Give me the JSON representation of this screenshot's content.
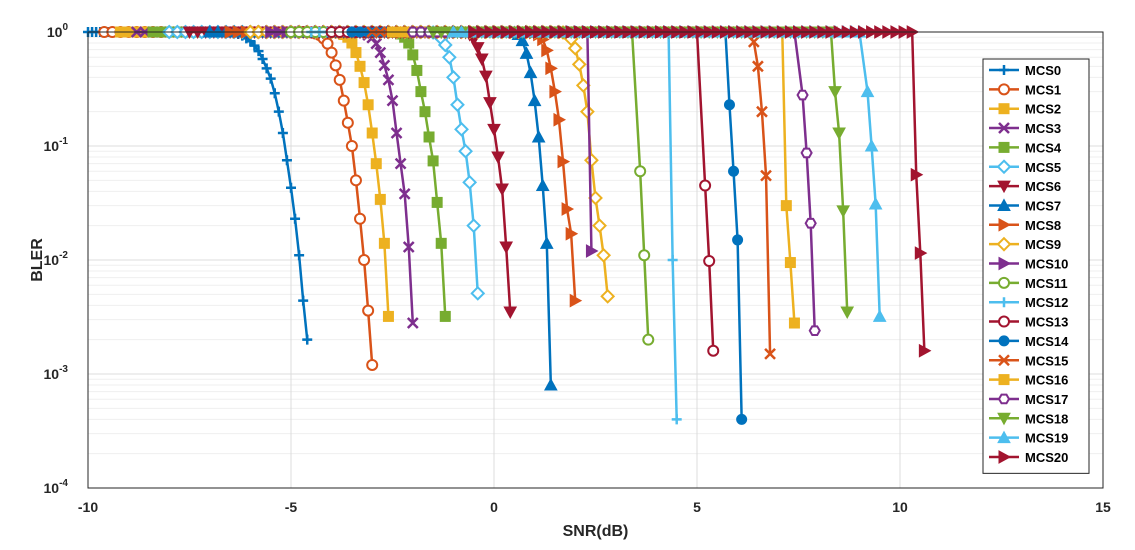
{
  "chart_data": {
    "type": "line",
    "xlabel": "SNR(dB)",
    "ylabel": "BLER",
    "xlim": [
      -10,
      15
    ],
    "ylim": [
      0.0001,
      1
    ],
    "yscale": "log",
    "grid": true,
    "legend_position": "right",
    "x_ticks": [
      "-10",
      "-5",
      "0",
      "5",
      "10",
      "15"
    ],
    "y_ticks": [
      {
        "base": "10",
        "exp": "0",
        "value": 1
      },
      {
        "base": "10",
        "exp": "-1",
        "value": 0.1
      },
      {
        "base": "10",
        "exp": "-2",
        "value": 0.01
      },
      {
        "base": "10",
        "exp": "-3",
        "value": 0.001
      },
      {
        "base": "10",
        "exp": "-4",
        "value": 0.0001
      }
    ],
    "series": [
      {
        "name": "MCS0",
        "color": "#0072BD",
        "marker": "plus",
        "x_start": -10.0,
        "x_end": -4.6,
        "values": [
          1,
          1,
          1,
          1,
          1,
          1,
          1,
          1,
          1,
          1,
          1,
          1,
          1,
          1,
          1,
          1,
          1,
          1,
          1,
          1,
          1,
          1,
          1,
          1,
          1,
          1,
          1,
          1,
          1,
          1,
          1,
          1,
          1,
          1,
          1,
          1,
          1,
          1,
          1,
          1,
          1,
          1,
          1,
          1,
          1,
          1,
          1,
          1,
          1,
          1,
          1,
          1,
          1,
          1,
          1,
          1,
          1,
          1,
          0.998,
          0.995,
          0.99,
          0.98,
          0.96,
          0.93,
          0.88,
          0.83,
          0.76,
          0.68,
          0.58,
          0.48,
          0.39,
          0.29,
          0.2,
          0.13,
          0.075,
          0.043,
          0.023,
          0.011,
          0.0044,
          0.002
        ],
        "step": 0.1,
        "shown": [
          -10.0,
          -4.6
        ]
      },
      {
        "name": "MCS1",
        "color": "#D95319",
        "marker": "circle",
        "x_start": -9.6,
        "x_end": -3.0,
        "values": [
          1,
          0.997,
          0.99,
          0.97,
          0.94,
          0.88,
          0.79,
          0.66,
          0.51,
          0.38,
          0.25,
          0.16,
          0.1,
          0.05,
          0.023,
          0.01,
          0.0036,
          0.0012
        ],
        "step": 0.1,
        "shown": [
          -4.7,
          -3.0
        ]
      },
      {
        "name": "MCS2",
        "color": "#EDB120",
        "marker": "square",
        "x_start": -9.2,
        "x_end": -2.6,
        "values": [
          1,
          0.995,
          0.98,
          0.95,
          0.9,
          0.8,
          0.66,
          0.5,
          0.36,
          0.23,
          0.13,
          0.07,
          0.034,
          0.014,
          0.0032
        ],
        "step": 0.1,
        "shown": [
          -4.0,
          -2.6
        ]
      },
      {
        "name": "MCS3",
        "color": "#7E2F8E",
        "marker": "x",
        "x_start": -8.8,
        "x_end": -2.0,
        "values": [
          1,
          0.99,
          0.98,
          0.94,
          0.89,
          0.79,
          0.66,
          0.51,
          0.38,
          0.25,
          0.13,
          0.07,
          0.038,
          0.013,
          0.0028
        ],
        "step": 0.1,
        "shown": [
          -3.4,
          -2.0
        ]
      },
      {
        "name": "MCS4",
        "color": "#77AC30",
        "marker": "square",
        "x_start": -8.4,
        "x_end": -1.2,
        "values": [
          1,
          0.99,
          0.96,
          0.9,
          0.8,
          0.63,
          0.46,
          0.3,
          0.2,
          0.12,
          0.074,
          0.032,
          0.014,
          0.0032
        ],
        "step": 0.1,
        "shown": [
          -2.5,
          -1.2
        ]
      },
      {
        "name": "MCS5",
        "color": "#4DBEEE",
        "marker": "diamond",
        "x_start": -8.0,
        "x_end": -0.4,
        "values": [
          1,
          0.99,
          0.96,
          0.88,
          0.77,
          0.6,
          0.4,
          0.23,
          0.14,
          0.09,
          0.048,
          0.02,
          0.0051
        ],
        "step": 0.1,
        "shown": [
          -1.6,
          -0.4
        ]
      },
      {
        "name": "MCS6",
        "color": "#A2142F",
        "marker": "tri-down",
        "x_start": -7.5,
        "x_end": 0.4,
        "values": [
          1,
          0.99,
          0.95,
          0.86,
          0.73,
          0.58,
          0.41,
          0.24,
          0.14,
          0.08,
          0.042,
          0.013,
          0.0035
        ],
        "step": 0.1,
        "shown": [
          -0.8,
          0.4
        ]
      },
      {
        "name": "MCS7",
        "color": "#0072BD",
        "marker": "tri-up",
        "x_start": -7.0,
        "x_end": 1.4,
        "values": [
          1,
          0.99,
          0.95,
          0.84,
          0.65,
          0.44,
          0.25,
          0.12,
          0.045,
          0.014,
          0.0008
        ],
        "step": 0.1,
        "shown": [
          0.4,
          1.4
        ]
      },
      {
        "name": "MCS8",
        "color": "#D95319",
        "marker": "tri-right",
        "x_start": -6.5,
        "x_end": 2.0,
        "values": [
          1,
          0.99,
          0.95,
          0.86,
          0.69,
          0.48,
          0.3,
          0.17,
          0.073,
          0.028,
          0.017,
          0.0044
        ],
        "step": 0.1,
        "shown": [
          0.9,
          2.0
        ]
      },
      {
        "name": "MCS9",
        "color": "#EDB120",
        "marker": "diamond",
        "x_start": -6.0,
        "x_end": 2.8,
        "values": [
          1,
          0.99,
          0.95,
          0.87,
          0.72,
          0.52,
          0.34,
          0.2,
          0.075,
          0.035,
          0.02,
          0.011,
          0.0048
        ],
        "step": 0.1,
        "shown": [
          1.6,
          2.8
        ]
      },
      {
        "name": "MCS10",
        "color": "#7E2F8E",
        "marker": "tri-right",
        "x_start": -5.5,
        "x_end": 3.4,
        "values": [
          1,
          0.99,
          0.94,
          0.83,
          0.62,
          0.4,
          0.2,
          0.12,
          0.048,
          0.012
        ],
        "step": 0.1,
        "shown": [
          2.4,
          3.4
        ]
      },
      {
        "name": "MCS11",
        "color": "#77AC30",
        "marker": "circle",
        "x_start": -5.0,
        "x_end": 4.8,
        "values": [
          1,
          0.99,
          0.94,
          0.82,
          0.6,
          0.35,
          0.19,
          0.06,
          0.011,
          0.002
        ],
        "step": 0.1,
        "shown": [
          3.6,
          4.8
        ]
      },
      {
        "name": "MCS12",
        "color": "#4DBEEE",
        "marker": "plus",
        "x_start": -4.5,
        "x_end": 5.4,
        "values": [
          1,
          0.99,
          0.96,
          0.85,
          0.55,
          0.2,
          0.07,
          0.01,
          0.0004
        ],
        "step": 0.1,
        "shown": [
          4.4,
          5.4
        ]
      },
      {
        "name": "MCS13",
        "color": "#A2142F",
        "marker": "circle",
        "x_start": -4.0,
        "x_end": 6.4,
        "values": [
          1,
          0.99,
          0.96,
          0.88,
          0.7,
          0.4,
          0.17,
          0.045,
          0.0098,
          0.0016
        ],
        "step": 0.1,
        "shown": [
          5.2,
          6.4
        ]
      },
      {
        "name": "MCS14",
        "color": "#0072BD",
        "marker": "dot",
        "x_start": -3.5,
        "x_end": 7.0,
        "values": [
          1,
          0.99,
          0.95,
          0.78,
          0.5,
          0.23,
          0.06,
          0.015,
          0.0004
        ],
        "step": 0.1,
        "shown": [
          5.8,
          7.0
        ]
      },
      {
        "name": "MCS15",
        "color": "#D95319",
        "marker": "x",
        "x_start": -3.0,
        "x_end": 7.6,
        "values": [
          1,
          0.99,
          0.95,
          0.82,
          0.5,
          0.2,
          0.055,
          0.0015
        ],
        "step": 0.1,
        "shown": [
          6.4,
          7.6
        ]
      },
      {
        "name": "MCS16",
        "color": "#EDB120",
        "marker": "square",
        "x_start": -2.5,
        "x_end": 8.4,
        "values": [
          1,
          0.99,
          0.95,
          0.8,
          0.5,
          0.18,
          0.085,
          0.03,
          0.0095,
          0.0028
        ],
        "step": 0.1,
        "shown": [
          7.2,
          8.4
        ]
      },
      {
        "name": "MCS17",
        "color": "#7E2F8E",
        "marker": "hexagon",
        "x_start": -2.0,
        "x_end": 8.8,
        "values": [
          1,
          0.99,
          0.95,
          0.86,
          0.6,
          0.28,
          0.087,
          0.021,
          0.0024
        ],
        "step": 0.1,
        "shown": [
          7.6,
          8.8
        ]
      },
      {
        "name": "MCS18",
        "color": "#77AC30",
        "marker": "tri-down",
        "x_start": -1.5,
        "x_end": 9.6,
        "values": [
          1,
          0.99,
          0.95,
          0.85,
          0.6,
          0.3,
          0.13,
          0.027,
          0.0035
        ],
        "step": 0.1,
        "shown": [
          8.4,
          9.6
        ]
      },
      {
        "name": "MCS19",
        "color": "#4DBEEE",
        "marker": "tri-up",
        "x_start": -1.0,
        "x_end": 10.4,
        "values": [
          1,
          0.99,
          0.95,
          0.88,
          0.6,
          0.3,
          0.1,
          0.031,
          0.0032
        ],
        "step": 0.1,
        "shown": [
          9.2,
          10.4
        ]
      },
      {
        "name": "MCS20",
        "color": "#A2142F",
        "marker": "tri-right",
        "x_start": -0.5,
        "x_end": 11.6,
        "values": [
          1,
          0.99,
          0.95,
          0.9,
          0.7,
          0.45,
          0.2,
          0.056,
          0.0115,
          0.0016
        ],
        "step": 0.1,
        "shown": [
          10.4,
          11.6
        ]
      }
    ]
  }
}
